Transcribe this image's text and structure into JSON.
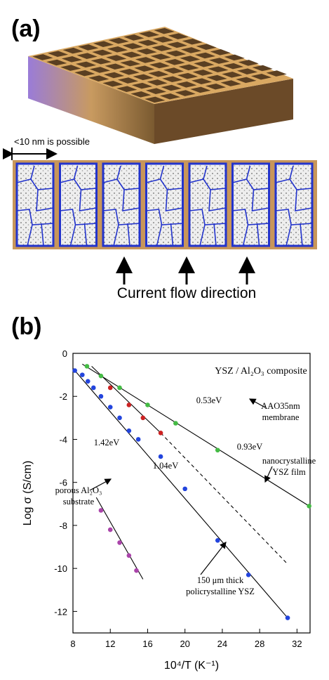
{
  "panel_a": {
    "label": "(a)",
    "scale_note": "<10 nm is possible",
    "caption": "Current flow direction"
  },
  "panel_b": {
    "label": "(b)"
  },
  "chart_data": {
    "type": "scatter",
    "x_label": "10⁴/T   (K⁻¹)",
    "y_label": "Log σ   (S/cm)",
    "xlim": [
      8,
      33.4
    ],
    "ylim": [
      -13,
      0
    ],
    "xticks": [
      8,
      12,
      16,
      20,
      24,
      28,
      32
    ],
    "yticks": [
      0,
      -2,
      -4,
      -6,
      -8,
      -10,
      -12
    ],
    "series": [
      {
        "color": "#44bb44",
        "x": [
          9.5,
          11,
          13,
          16,
          19,
          23.5,
          33.3
        ],
        "values": [
          -0.6,
          -1.05,
          -1.6,
          -2.4,
          -3.25,
          -4.5,
          -7.1
        ]
      },
      {
        "color": "#cc2222",
        "x": [
          12,
          14,
          15.5,
          17.4
        ],
        "values": [
          -1.6,
          -2.4,
          -3.0,
          -3.7
        ]
      },
      {
        "color": "#2244dd",
        "x": [
          8.2,
          9,
          9.6,
          10.2,
          11,
          12,
          13,
          14,
          15,
          17.4,
          20,
          23.5,
          26.8,
          31
        ],
        "values": [
          -0.8,
          -1.0,
          -1.3,
          -1.6,
          -2.0,
          -2.5,
          -3.0,
          -3.6,
          -4.0,
          -4.8,
          -6.3,
          -8.7,
          -10.3,
          -12.3
        ]
      },
      {
        "color": "#aa44aa",
        "x": [
          11,
          12,
          13,
          14,
          14.8
        ],
        "values": [
          -7.3,
          -8.2,
          -8.8,
          -9.4,
          -10.1
        ]
      }
    ],
    "fits": [
      {
        "x": [
          9,
          33.3
        ],
        "values": [
          -0.5,
          -7.1
        ],
        "dashed": false
      },
      {
        "x": [
          10,
          17.4
        ],
        "values": [
          -0.6,
          -3.7
        ],
        "dashed": false
      },
      {
        "x": [
          17.4,
          31
        ],
        "values": [
          -3.7,
          -9.8
        ],
        "dashed": true
      },
      {
        "x": [
          8,
          31
        ],
        "values": [
          -0.7,
          -12.3
        ],
        "dashed": false
      },
      {
        "x": [
          10.5,
          15.5
        ],
        "values": [
          -6.7,
          -10.5
        ],
        "dashed": false
      }
    ],
    "annotations": [
      [
        "YSZ / Al₂O₃ composite"
      ],
      [
        "0.53eV"
      ],
      [
        "0.93eV"
      ],
      [
        "1.04eV"
      ],
      [
        "1.42eV"
      ],
      [
        "AAO35nm",
        "membrane"
      ],
      [
        "nanocrystalline",
        "YSZ film"
      ],
      [
        "porous Al₂O₃",
        "substrate"
      ],
      [
        "150 μm thick",
        "policrystalline YSZ"
      ]
    ]
  }
}
